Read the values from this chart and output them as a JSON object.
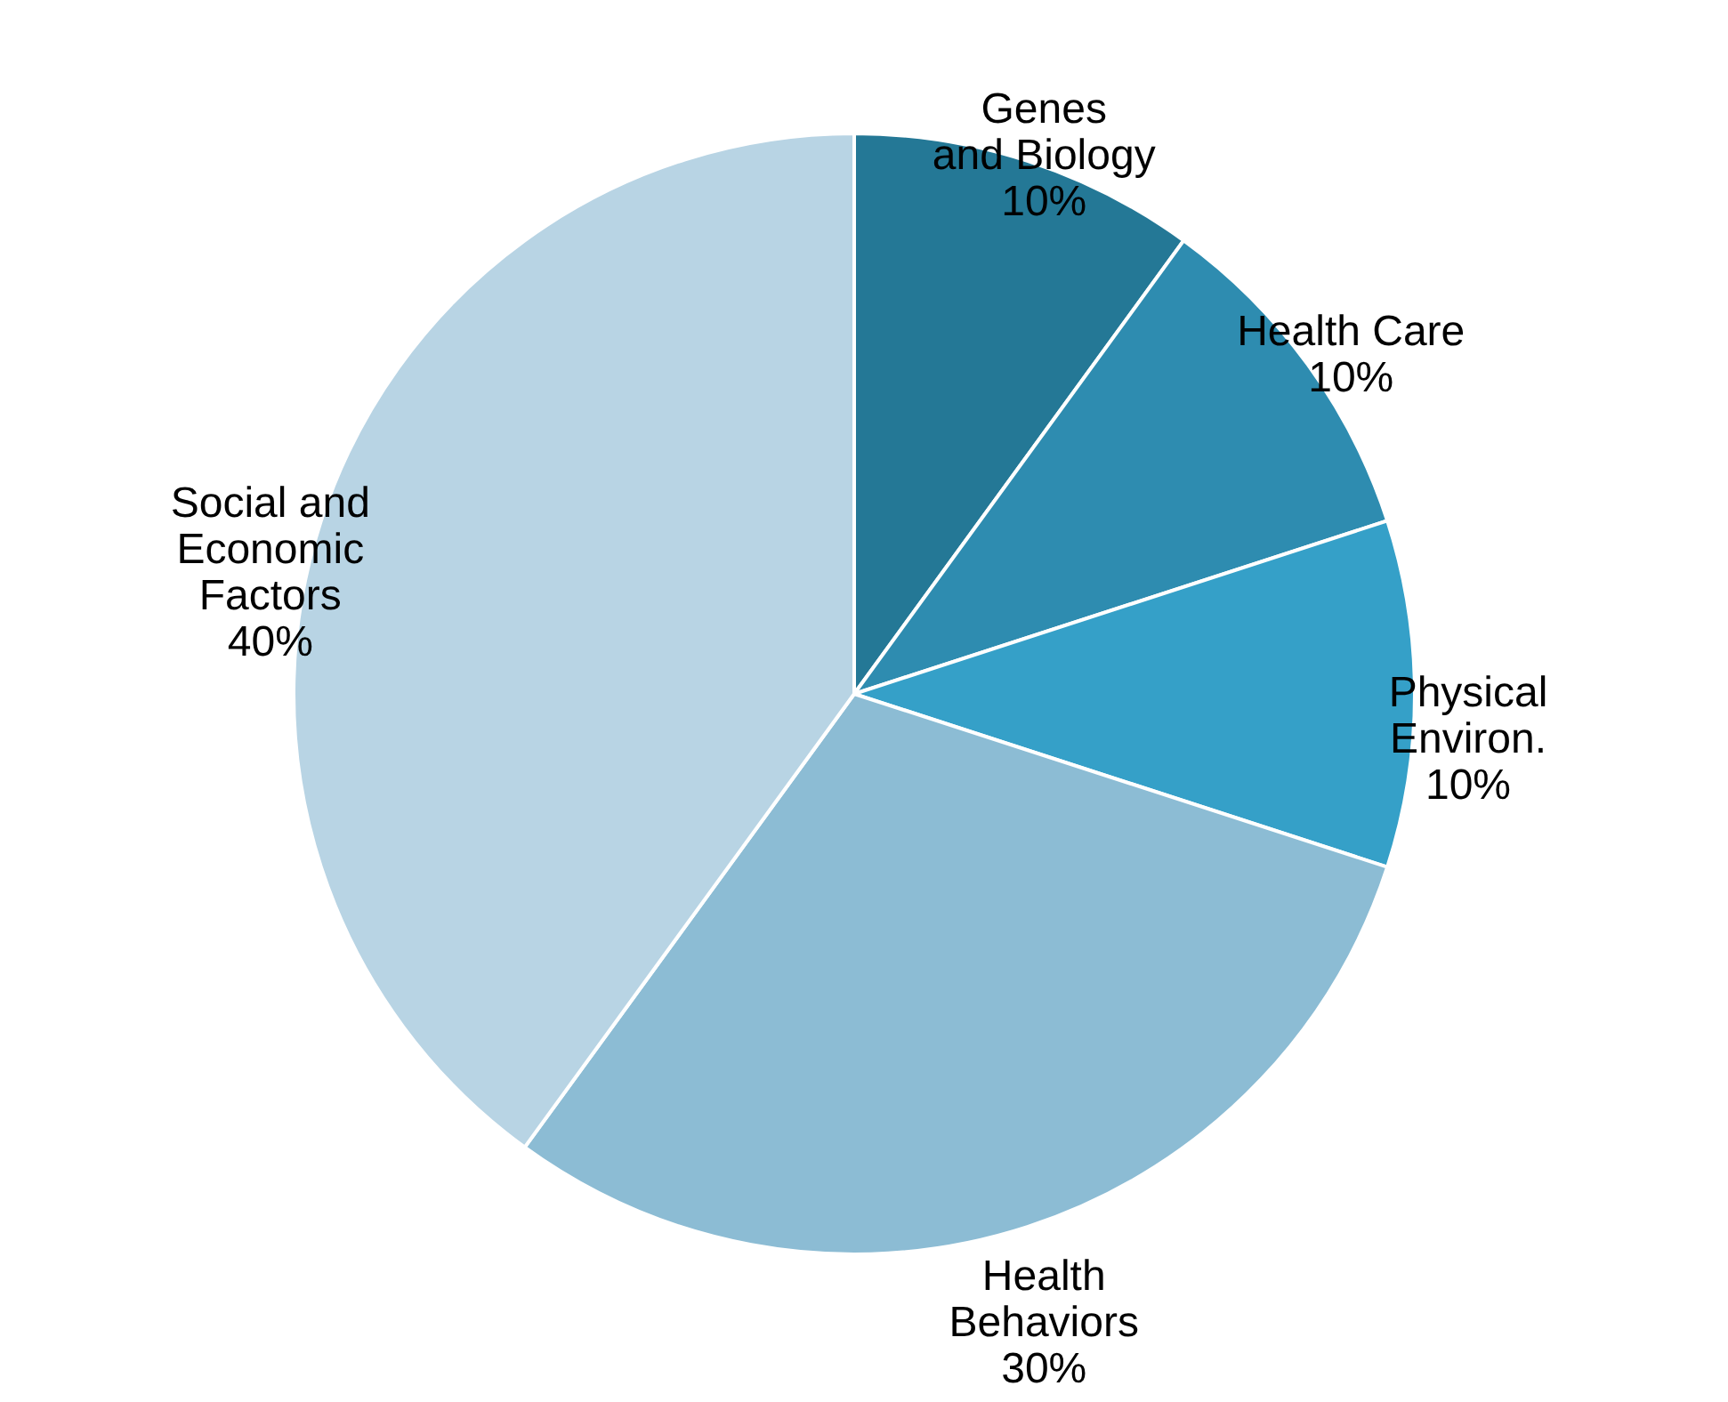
{
  "chart_data": {
    "type": "pie",
    "categories": [
      "Genes\nand Biology",
      "Health Care",
      "Physical\nEnviron.",
      "Health\nBehaviors",
      "Social and\nEconomic\nFactors"
    ],
    "values": [
      10,
      10,
      10,
      30,
      40
    ],
    "value_labels": [
      "10%",
      "10%",
      "10%",
      "30%",
      "40%"
    ],
    "colors": [
      "#247896",
      "#2e8cb0",
      "#35a0c8",
      "#8cbcd4",
      "#b8d4e4"
    ],
    "legend": false
  }
}
